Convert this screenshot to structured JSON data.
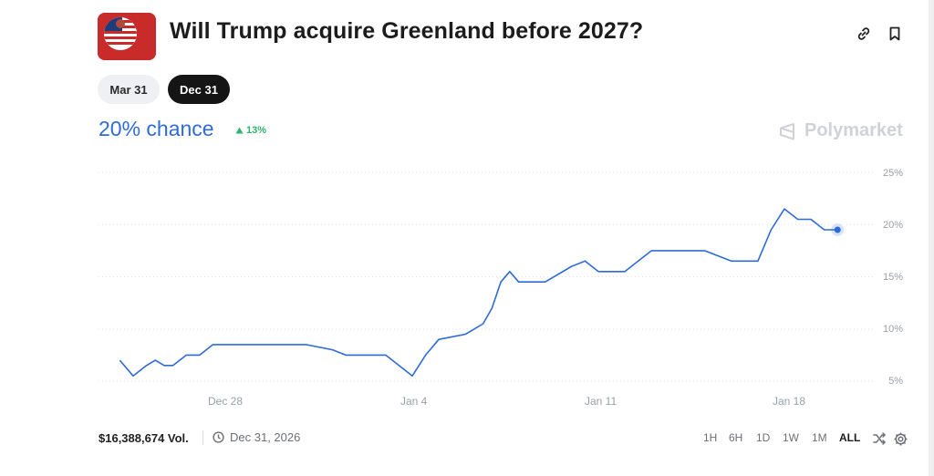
{
  "market": {
    "title": "Will Trump acquire Greenland before 2027?",
    "avatar_icon": "us-flag-avatar",
    "chance_text": "20% chance",
    "delta_text": "13%",
    "brand": "Polymarket"
  },
  "date_pills": [
    {
      "label": "Mar 31",
      "active": false
    },
    {
      "label": "Dec 31",
      "active": true
    }
  ],
  "footer": {
    "volume": "$16,388,674 Vol.",
    "end_date": "Dec 31, 2026",
    "ranges": [
      "1H",
      "6H",
      "1D",
      "1W",
      "1M",
      "ALL"
    ],
    "active_range": "ALL"
  },
  "colors": {
    "line": "#2f6bd8",
    "positive": "#2fb36e",
    "active_pill": "#151515"
  },
  "chart_data": {
    "type": "line",
    "title": "",
    "xlabel": "",
    "ylabel": "",
    "x_ticks": [
      "Dec 28",
      "Jan 4",
      "Jan 11",
      "Jan 18"
    ],
    "y_ticks": [
      "5%",
      "10%",
      "15%",
      "20%",
      "25%"
    ],
    "ylim": [
      5,
      25
    ],
    "grid": true,
    "series": [
      {
        "points": [
          [
            "Dec 24",
            7.0
          ],
          [
            "Dec 24",
            5.5
          ],
          [
            "Dec 25",
            6.5
          ],
          [
            "Dec 25",
            7.0
          ],
          [
            "Dec 25",
            6.5
          ],
          [
            "Dec 26",
            6.5
          ],
          [
            "Dec 26",
            7.5
          ],
          [
            "Dec 27",
            7.5
          ],
          [
            "Dec 27",
            8.5
          ],
          [
            "Dec 31",
            8.5
          ],
          [
            "Jan 1",
            8.0
          ],
          [
            "Jan 1",
            7.5
          ],
          [
            "Jan 3",
            7.5
          ],
          [
            "Jan 4",
            5.5
          ],
          [
            "Jan 4",
            7.5
          ],
          [
            "Jan 5",
            9.0
          ],
          [
            "Jan 6",
            9.5
          ],
          [
            "Jan 6",
            10.0
          ],
          [
            "Jan 6",
            10.5
          ],
          [
            "Jan 7",
            12.0
          ],
          [
            "Jan 7",
            14.5
          ],
          [
            "Jan 7",
            15.5
          ],
          [
            "Jan 8",
            14.5
          ],
          [
            "Jan 9",
            14.5
          ],
          [
            "Jan 10",
            16.0
          ],
          [
            "Jan 10",
            16.5
          ],
          [
            "Jan 11",
            15.5
          ],
          [
            "Jan 12",
            15.5
          ],
          [
            "Jan 12",
            16.5
          ],
          [
            "Jan 13",
            17.5
          ],
          [
            "Jan 14",
            17.5
          ],
          [
            "Jan 15",
            17.5
          ],
          [
            "Jan 16",
            16.5
          ],
          [
            "Jan 17",
            16.5
          ],
          [
            "Jan 17",
            19.5
          ],
          [
            "Jan 18",
            21.5
          ],
          [
            "Jan 18",
            20.5
          ],
          [
            "Jan 19",
            20.5
          ],
          [
            "Jan 19",
            19.5
          ],
          [
            "Jan 20",
            19.5
          ]
        ]
      }
    ]
  }
}
